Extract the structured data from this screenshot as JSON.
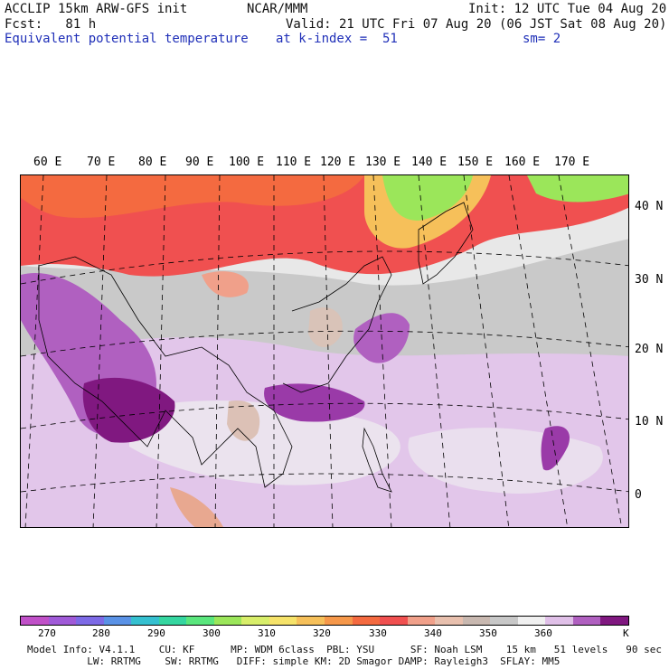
{
  "header": {
    "line1_left": "ACCLIP 15km ARW-GFS init",
    "line1_center": "NCAR/MMM",
    "line1_right": "Init: 12 UTC Tue 04 Aug 20",
    "line2_left": "Fcst:   81 h",
    "line2_right": "Valid: 21 UTC Fri 07 Aug 20 (06 JST Sat 08 Aug 20)",
    "field_name": "Equivalent potential temperature",
    "k_index": "at k-index =  51",
    "smoothing": "sm= 2"
  },
  "map": {
    "lon_labels": [
      "60 E",
      "70 E",
      "80 E",
      "90 E",
      "100 E",
      "110 E",
      "120 E",
      "130 E",
      "140 E",
      "150 E",
      "160 E",
      "170 E"
    ],
    "lat_labels": [
      "40 N",
      "30 N",
      "20 N",
      "10 N",
      "0"
    ]
  },
  "colorbar": {
    "colors": [
      "#c050c8",
      "#a05ad8",
      "#7d6ae6",
      "#5a92e6",
      "#35c0d0",
      "#35d6a0",
      "#5ae67d",
      "#9be65a",
      "#d8ee6a",
      "#f6e36a",
      "#f6c05a",
      "#f6984a",
      "#f46a40",
      "#f05050",
      "#f0a08a",
      "#e8c0ae",
      "#c8b8b0",
      "#c8c8c8",
      "#f0f0f0",
      "#e0c0e8",
      "#b060c0",
      "#801880"
    ],
    "ticks": [
      "270",
      "280",
      "290",
      "300",
      "310",
      "320",
      "330",
      "340",
      "350",
      "360",
      "K"
    ]
  },
  "footer": {
    "line1": "Model Info: V4.1.1    CU: KF      MP: WDM 6class  PBL: YSU      SF: Noah LSM    15 km   51 levels   90 sec",
    "line2": "          LW: RRTMG    SW: RRTMG   DIFF: simple KM: 2D Smagor DAMP: Rayleigh3  SFLAY: MM5"
  }
}
